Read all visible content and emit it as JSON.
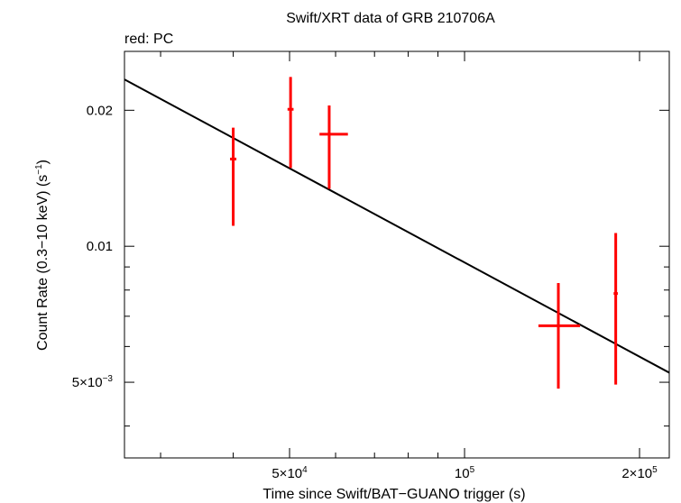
{
  "chart_data": {
    "type": "scatter",
    "title": "Swift/XRT data of GRB 210706A",
    "subtitle": "red: PC",
    "xlabel": "Time since Swift/BAT−GUANO trigger (s)",
    "ylabel": {
      "base": "Count Rate (0.3−10 keV) (s",
      "sup": "−1",
      "close": ")"
    },
    "x_scale": "log",
    "y_scale": "log",
    "xlim": [
      26000,
      225000
    ],
    "ylim": [
      0.0034,
      0.027
    ],
    "x_ticks": [
      {
        "value": 50000,
        "mantissa": "5×10",
        "exp": "4"
      },
      {
        "value": 100000,
        "mantissa": "10",
        "exp": "5"
      },
      {
        "value": 200000,
        "mantissa": "2×10",
        "exp": "5"
      }
    ],
    "y_ticks": [
      {
        "value": 0.005,
        "mantissa": "5×10",
        "exp": "−3"
      },
      {
        "value": 0.01,
        "mantissa": "0.01",
        "exp": ""
      },
      {
        "value": 0.02,
        "mantissa": "0.02",
        "exp": ""
      }
    ],
    "series": [
      {
        "color": "#ff0000",
        "points": [
          {
            "x": 40000,
            "xerr": [
              500,
              500
            ],
            "y": 0.0156,
            "yerr": [
              0.0111,
              0.0183
            ]
          },
          {
            "x": 50200,
            "xerr": [
              600,
              600
            ],
            "y": 0.0201,
            "yerr": [
              0.0149,
              0.0237
            ]
          },
          {
            "x": 58500,
            "xerr": [
              2200,
              4500
            ],
            "y": 0.0177,
            "yerr": [
              0.0134,
              0.0205
            ]
          },
          {
            "x": 145000,
            "xerr": [
              11000,
              13000
            ],
            "y": 0.00667,
            "yerr": [
              0.00484,
              0.00829
            ]
          },
          {
            "x": 182000,
            "xerr": [
              1500,
              1500
            ],
            "y": 0.00786,
            "yerr": [
              0.00494,
              0.0107
            ]
          }
        ]
      }
    ],
    "model_line": {
      "color": "#000000",
      "points": [
        {
          "x": 26000,
          "y": 0.0234
        },
        {
          "x": 225000,
          "y": 0.00525
        }
      ]
    }
  }
}
